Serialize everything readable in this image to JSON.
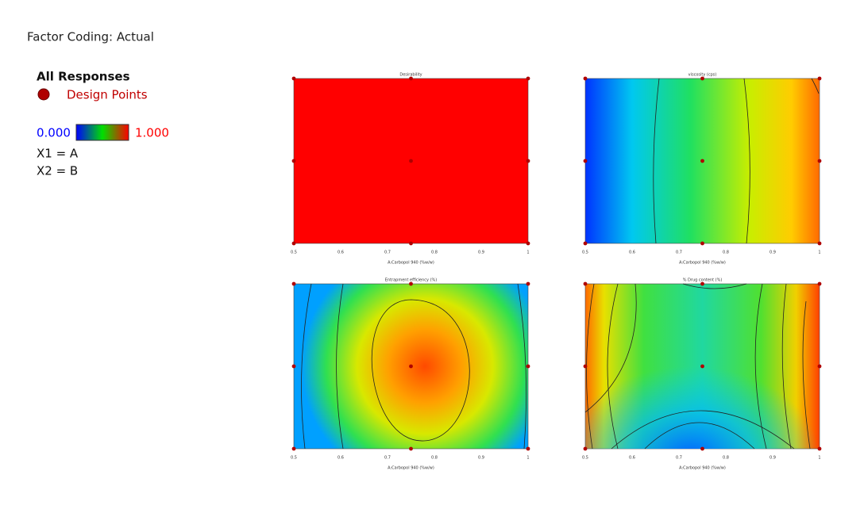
{
  "header": {
    "coding": "Factor Coding: Actual"
  },
  "legend": {
    "title": "All Responses",
    "points": "Design Points",
    "low": "0.000",
    "high": "1.000",
    "x1": "X1 = A",
    "x2": "X2 = B"
  },
  "panels": [
    {
      "title": "Desirability",
      "x_label": "A:Carbopol 940 (%w/w)"
    },
    {
      "title": "viscosity (cps)",
      "x_label": "A:Carbopol 940 (%w/w)"
    },
    {
      "title": "Entrapment efficiency (%)",
      "x_label": "A:Carbopol 940 (%w/w)"
    },
    {
      "title": "% Drug content (%)",
      "x_label": "A:Carbopol 940 (%w/w)"
    }
  ],
  "x_ticks": [
    "0.5",
    "0.6",
    "0.7",
    "0.8",
    "0.9",
    "1"
  ]
}
